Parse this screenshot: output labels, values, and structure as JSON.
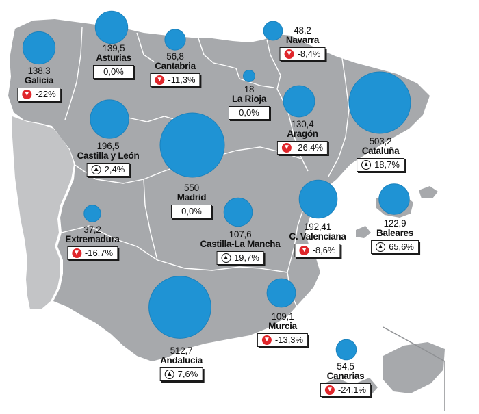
{
  "regions": [
    {
      "id": "galicia",
      "value": "138,3",
      "name": "Galicia",
      "change": "-22%",
      "trend": "down",
      "size": 138.3
    },
    {
      "id": "asturias",
      "value": "139,5",
      "name": "Asturias",
      "change": "0,0%",
      "trend": "none",
      "size": 139.5
    },
    {
      "id": "cantabria",
      "value": "56,8",
      "name": "Cantabria",
      "change": "-11,3%",
      "trend": "down",
      "size": 56.8
    },
    {
      "id": "navarra",
      "value": "48,2",
      "name": "Navarra",
      "change": "-8,4%",
      "trend": "down",
      "size": 48.2
    },
    {
      "id": "la-rioja",
      "value": "18",
      "name": "La Rioja",
      "change": "0,0%",
      "trend": "none",
      "size": 18
    },
    {
      "id": "aragon",
      "value": "130,4",
      "name": "Aragón",
      "change": "-26,4%",
      "trend": "down",
      "size": 130.4
    },
    {
      "id": "cataluna",
      "value": "503,2",
      "name": "Cataluña",
      "change": "18,7%",
      "trend": "up",
      "size": 503.2
    },
    {
      "id": "castilla-y-leon",
      "value": "196,5",
      "name": "Castilla y León",
      "change": "2,4%",
      "trend": "up",
      "size": 196.5
    },
    {
      "id": "madrid",
      "value": "550",
      "name": "Madrid",
      "change": "0,0%",
      "trend": "none",
      "size": 550
    },
    {
      "id": "extremadura",
      "value": "37,2",
      "name": "Extremadura",
      "change": "-16,7%",
      "trend": "down",
      "size": 37.2
    },
    {
      "id": "castilla-la-mancha",
      "value": "107,6",
      "name": "Castilla-La Mancha",
      "change": "19,7%",
      "trend": "up",
      "size": 107.6
    },
    {
      "id": "c-valenciana",
      "value": "192,41",
      "name": "C. Valenciana",
      "change": "-8,6%",
      "trend": "down",
      "size": 192.41
    },
    {
      "id": "baleares",
      "value": "122,9",
      "name": "Baleares",
      "change": "65,6%",
      "trend": "up",
      "size": 122.9
    },
    {
      "id": "murcia",
      "value": "109,1",
      "name": "Murcia",
      "change": "-13,3%",
      "trend": "down",
      "size": 109.1
    },
    {
      "id": "andalucia",
      "value": "512,7",
      "name": "Andalucía",
      "change": "7,6%",
      "trend": "up",
      "size": 512.7
    },
    {
      "id": "canarias",
      "value": "54,5",
      "name": "Canarias",
      "change": "-24,1%",
      "trend": "down",
      "size": 54.5
    }
  ],
  "arrows": {
    "down": "▼",
    "up": "▲"
  },
  "colors": {
    "land": "#a7a9ac",
    "borders": "#ffffff",
    "bubble": "#1f93d4",
    "decrease": "#e0262b"
  }
}
